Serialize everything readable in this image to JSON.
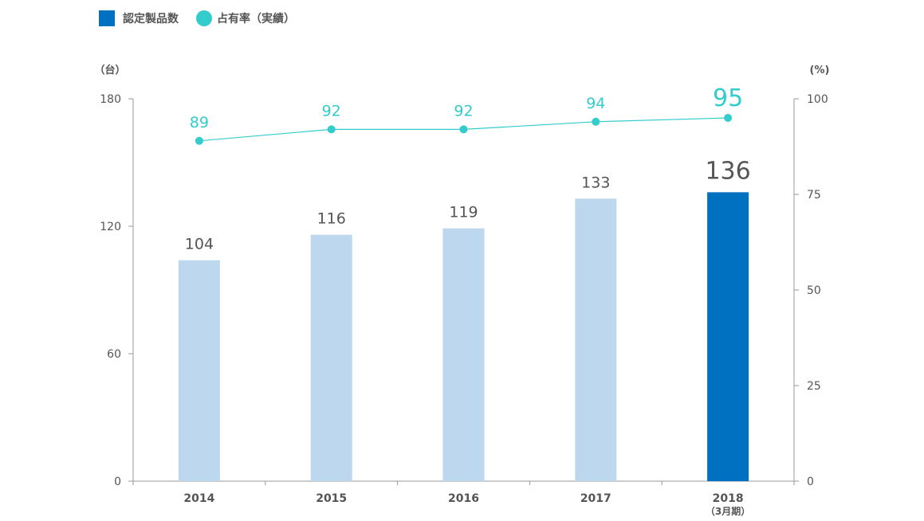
{
  "legend": {
    "bar_label": "認定製品数",
    "line_label": "占有率（実績）"
  },
  "colors": {
    "bar_past": "#bdd7ee",
    "bar_current": "#0070c0",
    "line": "#33cccc",
    "axis": "#999999",
    "text": "#555555"
  },
  "chart_data": {
    "type": "bar",
    "categories": [
      "2014",
      "2015",
      "2016",
      "2017",
      "2018"
    ],
    "category_sublabels": [
      "",
      "",
      "",
      "",
      "（3月期）"
    ],
    "series": [
      {
        "name": "認定製品数",
        "type": "bar",
        "axis": "left",
        "values": [
          104,
          116,
          119,
          133,
          136
        ],
        "highlight_index": 4
      },
      {
        "name": "占有率（実績）",
        "type": "line",
        "axis": "right",
        "values": [
          89,
          92,
          92,
          94,
          95
        ],
        "highlight_index": 4
      }
    ],
    "left_axis": {
      "unit": "（台）",
      "ylim": [
        0,
        180
      ],
      "ticks": [
        0,
        60,
        120,
        180
      ]
    },
    "right_axis": {
      "unit": "(%)",
      "ylim": [
        0,
        100
      ],
      "ticks": [
        0,
        25,
        50,
        75,
        100
      ]
    },
    "grid": false,
    "legend_position": "top-left"
  }
}
